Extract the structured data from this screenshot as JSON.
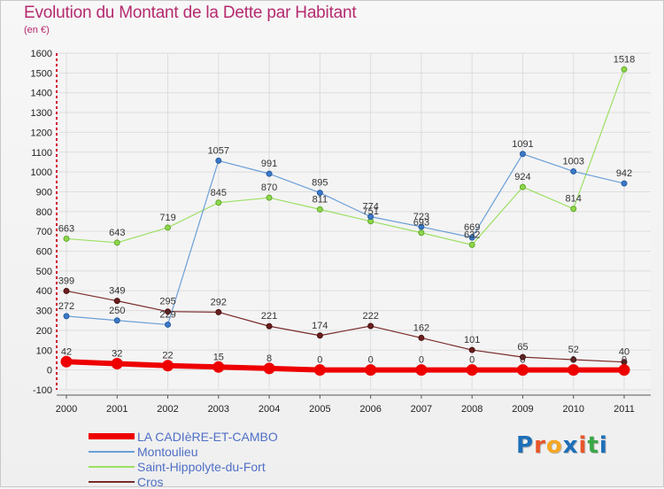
{
  "header": {
    "title": "Evolution du Montant de la Dette par Habitant",
    "subtitle": "(en €)"
  },
  "logo": {
    "text": "Proxiti",
    "letter_colors": [
      "#1d6fb8",
      "#e8562a",
      "#f5a623",
      "#1d6fb8",
      "#e8562a",
      "#3aa845",
      "#1d6fb8"
    ]
  },
  "chart_data": {
    "type": "line",
    "title": "Evolution du Montant de la Dette par Habitant",
    "subtitle": "(en €)",
    "x": [
      "2000",
      "2001",
      "2002",
      "2003",
      "2004",
      "2005",
      "2006",
      "2007",
      "2008",
      "2009",
      "2010",
      "2011"
    ],
    "ylim": [
      -100,
      1600
    ],
    "yticks": [
      -100,
      0,
      100,
      200,
      300,
      400,
      500,
      600,
      700,
      800,
      900,
      1000,
      1100,
      1200,
      1300,
      1400,
      1500,
      1600
    ],
    "grid": true,
    "legend_position": "bottom-left",
    "series": [
      {
        "name": "LA CADIèRE-ET-CAMBO",
        "color": "#ee0000",
        "values": [
          42,
          32,
          22,
          15,
          8,
          0,
          0,
          0,
          0,
          0,
          0,
          0
        ],
        "labels": [
          "42",
          "32",
          "22",
          "15",
          "8",
          "0",
          "0",
          "0",
          "0",
          "0",
          "0",
          "0"
        ]
      },
      {
        "name": "Montoulieu",
        "color": "#6a9fd8",
        "values": [
          272,
          250,
          229,
          1057,
          991,
          895,
          774,
          723,
          669,
          1091,
          1003,
          942
        ],
        "labels": [
          "272",
          "250",
          "229",
          "1057",
          "991",
          "895",
          "774",
          "723",
          "669",
          "1091",
          "1003",
          "942"
        ]
      },
      {
        "name": "Saint-Hippolyte-du-Fort",
        "color": "#9be062",
        "values": [
          663,
          643,
          719,
          845,
          870,
          811,
          751,
          693,
          632,
          924,
          814,
          1518
        ],
        "labels": [
          "663",
          "643",
          "719",
          "845",
          "870",
          "811",
          "751",
          "693",
          "632",
          "924",
          "814",
          "1518"
        ]
      },
      {
        "name": "Cros",
        "color": "#7a2a2a",
        "values": [
          399,
          349,
          295,
          292,
          221,
          174,
          222,
          162,
          101,
          65,
          52,
          40
        ],
        "labels": [
          "399",
          "349",
          "295",
          "292",
          "221",
          "174",
          "222",
          "162",
          "101",
          "65",
          "52",
          "40"
        ]
      }
    ]
  }
}
